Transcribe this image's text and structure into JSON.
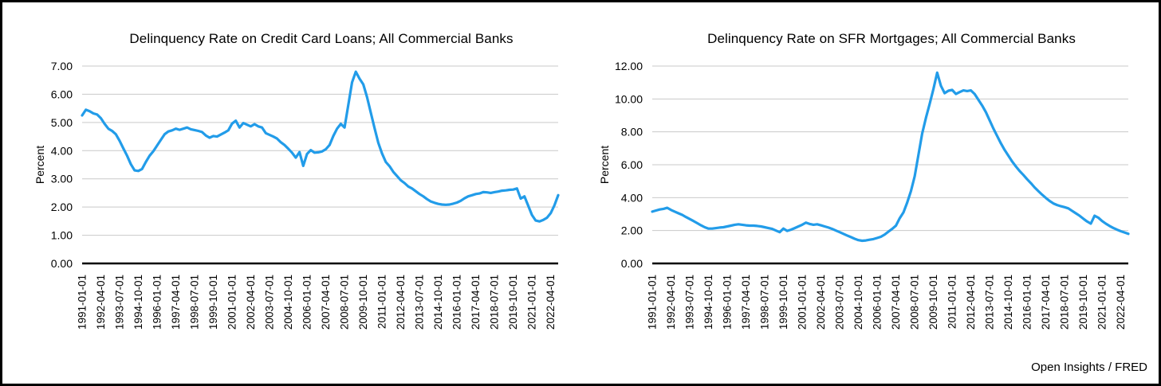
{
  "page": {
    "footer_credit": "Open Insights / FRED"
  },
  "colors": {
    "line": "#229CE9",
    "grid": "#C9C9C9",
    "axis": "#000000",
    "background": "#FFFFFF",
    "border": "#000000"
  },
  "chart_data": [
    {
      "type": "line",
      "title": "Delinquency Rate on Credit Card Loans; All Commercial Banks",
      "ylabel": "Percent",
      "xlabel": "",
      "ylim": [
        0,
        7
      ],
      "ytick_step": 1,
      "ytick_decimals": 2,
      "grid": "horizontal",
      "legend": "none",
      "x_unit": "quarterly",
      "x_start": "1991-01-01",
      "x_end": "2022-10-01",
      "x_tick_every": 5,
      "x_tick_labels": [
        "1991-01-01",
        "1992-04-01",
        "1993-07-01",
        "1994-10-01",
        "1996-01-01",
        "1997-04-01",
        "1998-07-01",
        "1999-10-01",
        "2001-01-01",
        "2002-04-01",
        "2003-07-01",
        "2004-10-01",
        "2006-01-01",
        "2007-04-01",
        "2008-07-01",
        "2009-10-01",
        "2011-01-01",
        "2012-04-01",
        "2013-07-01",
        "2014-10-01",
        "2016-01-01",
        "2017-04-01",
        "2018-07-01",
        "2019-10-01",
        "2021-01-01",
        "2022-04-01"
      ],
      "series": [
        {
          "name": "Delinquency Rate on Credit Card Loans",
          "color": "#229CE9",
          "values": [
            5.25,
            5.45,
            5.4,
            5.32,
            5.28,
            5.15,
            4.95,
            4.78,
            4.7,
            4.58,
            4.35,
            4.08,
            3.82,
            3.52,
            3.3,
            3.28,
            3.35,
            3.6,
            3.82,
            3.98,
            4.18,
            4.38,
            4.58,
            4.68,
            4.72,
            4.78,
            4.74,
            4.78,
            4.82,
            4.76,
            4.73,
            4.7,
            4.66,
            4.54,
            4.46,
            4.52,
            4.5,
            4.57,
            4.64,
            4.72,
            4.96,
            5.06,
            4.82,
            4.98,
            4.92,
            4.86,
            4.94,
            4.86,
            4.82,
            4.62,
            4.56,
            4.5,
            4.43,
            4.3,
            4.2,
            4.07,
            3.93,
            3.75,
            3.95,
            3.46,
            3.88,
            4.02,
            3.93,
            3.94,
            3.97,
            4.05,
            4.2,
            4.52,
            4.78,
            4.95,
            4.82,
            5.62,
            6.42,
            6.8,
            6.55,
            6.35,
            5.9,
            5.35,
            4.8,
            4.28,
            3.9,
            3.6,
            3.45,
            3.25,
            3.1,
            2.95,
            2.85,
            2.73,
            2.66,
            2.56,
            2.46,
            2.38,
            2.28,
            2.2,
            2.15,
            2.11,
            2.09,
            2.08,
            2.09,
            2.12,
            2.16,
            2.22,
            2.31,
            2.38,
            2.42,
            2.46,
            2.48,
            2.53,
            2.52,
            2.5,
            2.53,
            2.55,
            2.58,
            2.59,
            2.61,
            2.62,
            2.66,
            2.3,
            2.38,
            2.05,
            1.72,
            1.52,
            1.49,
            1.54,
            1.62,
            1.78,
            2.06,
            2.42
          ]
        }
      ]
    },
    {
      "type": "line",
      "title": "Delinquency Rate on SFR Mortgages; All Commercial Banks",
      "ylabel": "Percent",
      "xlabel": "",
      "ylim": [
        0,
        12
      ],
      "ytick_step": 2,
      "ytick_decimals": 2,
      "grid": "horizontal",
      "legend": "none",
      "x_unit": "quarterly",
      "x_start": "1991-01-01",
      "x_end": "2022-10-01",
      "x_tick_every": 5,
      "x_tick_labels": [
        "1991-01-01",
        "1992-04-01",
        "1993-07-01",
        "1994-10-01",
        "1996-01-01",
        "1997-04-01",
        "1998-07-01",
        "1999-10-01",
        "2001-01-01",
        "2002-04-01",
        "2003-07-01",
        "2004-10-01",
        "2006-01-01",
        "2007-04-01",
        "2008-07-01",
        "2009-10-01",
        "2011-01-01",
        "2012-04-01",
        "2013-07-01",
        "2014-10-01",
        "2016-01-01",
        "2017-04-01",
        "2018-07-01",
        "2019-10-01",
        "2021-01-01",
        "2022-04-01"
      ],
      "series": [
        {
          "name": "Delinquency Rate on SFR Mortgages",
          "color": "#229CE9",
          "values": [
            3.15,
            3.22,
            3.28,
            3.32,
            3.38,
            3.25,
            3.15,
            3.05,
            2.95,
            2.82,
            2.7,
            2.58,
            2.45,
            2.32,
            2.2,
            2.12,
            2.12,
            2.15,
            2.18,
            2.2,
            2.25,
            2.3,
            2.35,
            2.38,
            2.35,
            2.32,
            2.3,
            2.3,
            2.28,
            2.25,
            2.2,
            2.15,
            2.1,
            2.0,
            1.9,
            2.12,
            1.98,
            2.05,
            2.15,
            2.25,
            2.35,
            2.48,
            2.4,
            2.35,
            2.38,
            2.32,
            2.25,
            2.18,
            2.1,
            2.0,
            1.9,
            1.8,
            1.7,
            1.6,
            1.5,
            1.42,
            1.38,
            1.4,
            1.44,
            1.48,
            1.55,
            1.62,
            1.75,
            1.93,
            2.1,
            2.3,
            2.75,
            3.1,
            3.7,
            4.4,
            5.3,
            6.6,
            7.9,
            8.85,
            9.7,
            10.6,
            11.6,
            10.8,
            10.35,
            10.5,
            10.55,
            10.3,
            10.42,
            10.52,
            10.48,
            10.52,
            10.3,
            9.95,
            9.6,
            9.2,
            8.7,
            8.2,
            7.75,
            7.3,
            6.9,
            6.55,
            6.2,
            5.9,
            5.62,
            5.38,
            5.12,
            4.88,
            4.62,
            4.4,
            4.18,
            3.98,
            3.8,
            3.65,
            3.55,
            3.48,
            3.42,
            3.35,
            3.2,
            3.05,
            2.9,
            2.72,
            2.55,
            2.42,
            2.9,
            2.78,
            2.58,
            2.42,
            2.28,
            2.16,
            2.05,
            1.96,
            1.88,
            1.8
          ]
        }
      ]
    }
  ]
}
